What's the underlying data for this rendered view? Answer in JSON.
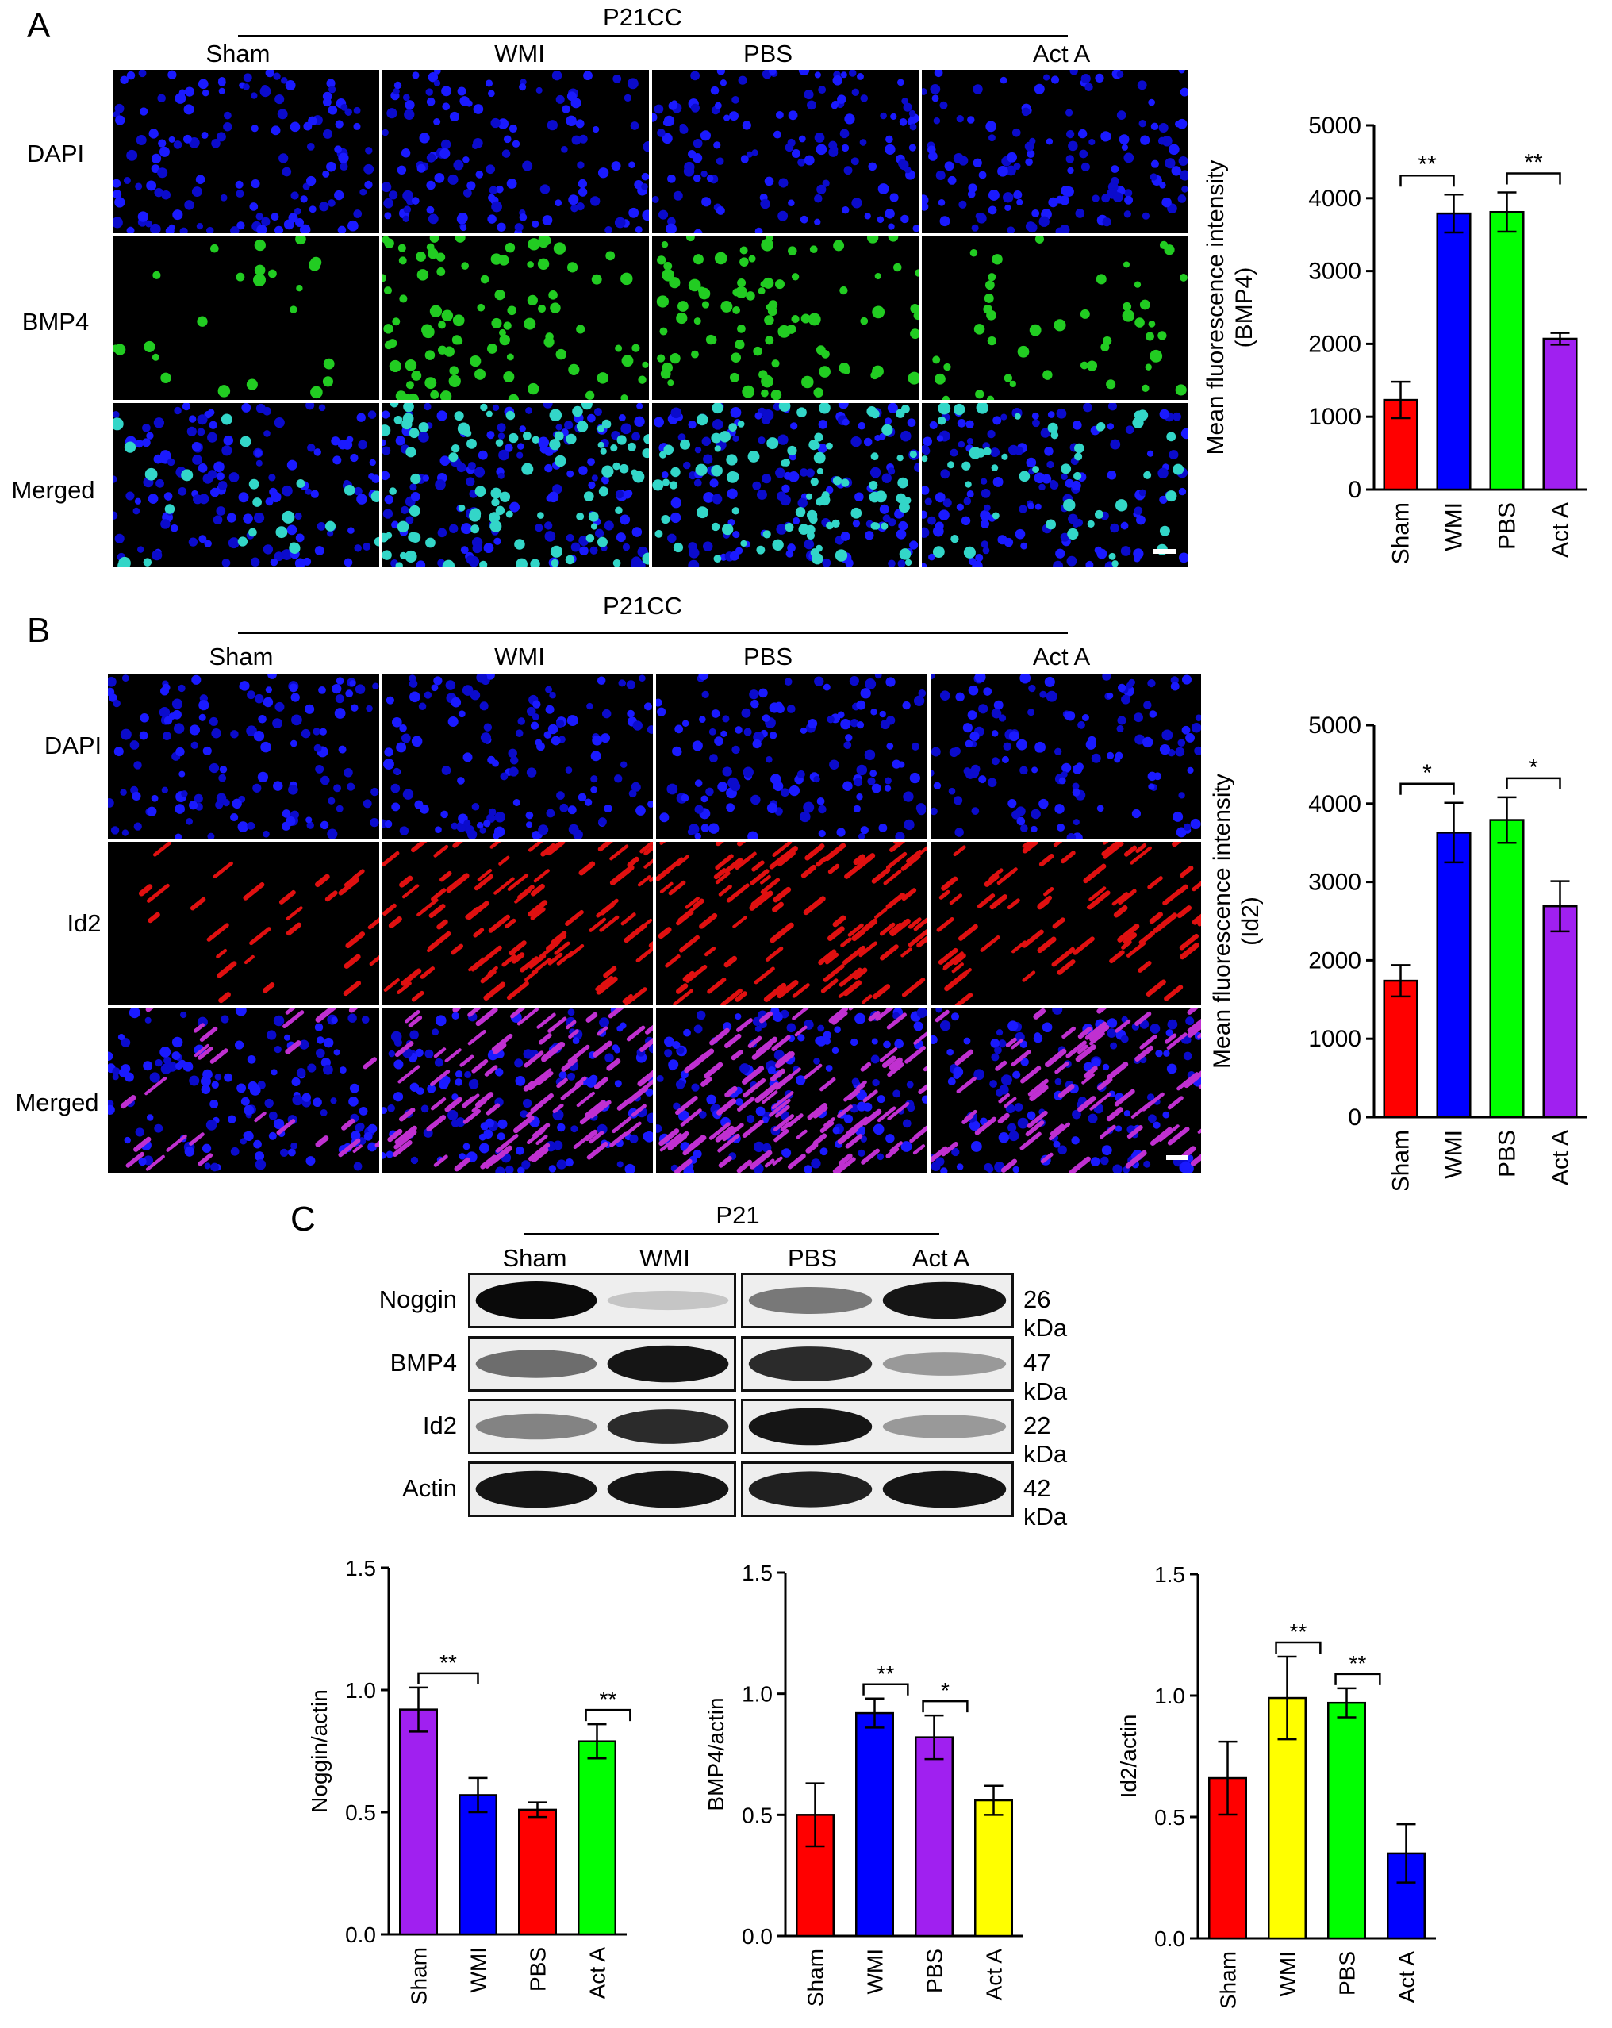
{
  "panel_a": {
    "letter": "A",
    "header": "P21CC",
    "columns": [
      "Sham",
      "WMI",
      "PBS",
      "Act A"
    ],
    "rows": [
      "DAPI",
      "BMP4",
      "Merged"
    ]
  },
  "panel_b": {
    "letter": "B",
    "header": "P21CC",
    "columns": [
      "Sham",
      "WMI",
      "PBS",
      "Act A"
    ],
    "rows": [
      "DAPI",
      "Id2",
      "Merged"
    ]
  },
  "panel_c": {
    "letter": "C",
    "header": "P21",
    "columns": [
      "Sham",
      "WMI",
      "PBS",
      "Act A"
    ],
    "blots": [
      {
        "label": "Noggin",
        "kda": "26 kDa",
        "bands": [
          1.0,
          0.15,
          0.5,
          0.95
        ]
      },
      {
        "label": "BMP4",
        "kda": "47 kDa",
        "bands": [
          0.55,
          0.95,
          0.85,
          0.35
        ]
      },
      {
        "label": "Id2",
        "kda": "22 kDa",
        "bands": [
          0.45,
          0.85,
          0.95,
          0.35
        ]
      },
      {
        "label": "Actin",
        "kda": "42 kDa",
        "bands": [
          0.95,
          0.95,
          0.9,
          0.95
        ]
      }
    ]
  },
  "colors": {
    "red": "#ff0000",
    "blue": "#0000ff",
    "green": "#00ff00",
    "purple": "#a020f0",
    "yellow": "#ffff00"
  },
  "chart_data": [
    {
      "id": "A-chart",
      "type": "bar",
      "categories": [
        "Sham",
        "WMI",
        "PBS",
        "Act A"
      ],
      "values": [
        1230,
        3790,
        3810,
        2070
      ],
      "errors": [
        250,
        260,
        270,
        80
      ],
      "colors": [
        "#ff0000",
        "#0000ff",
        "#00ff00",
        "#a020f0"
      ],
      "ylabel": [
        "Mean fluorescence intensity",
        "(BMP4)"
      ],
      "ylim": [
        0,
        5000
      ],
      "yticks": [
        "0",
        "1000",
        "2000",
        "3000",
        "4000",
        "5000"
      ],
      "yticks_v": [
        0,
        1000,
        2000,
        3000,
        4000,
        5000
      ],
      "sig": [
        {
          "from": 0,
          "to": 1,
          "label": "**"
        },
        {
          "from": 2,
          "to": 3,
          "label": "**"
        }
      ]
    },
    {
      "id": "B-chart",
      "type": "bar",
      "categories": [
        "Sham",
        "WMI",
        "PBS",
        "Act A"
      ],
      "values": [
        1740,
        3630,
        3790,
        2690
      ],
      "errors": [
        200,
        380,
        290,
        320
      ],
      "colors": [
        "#ff0000",
        "#0000ff",
        "#00ff00",
        "#a020f0"
      ],
      "ylabel": [
        "Mean fluorescence intensity",
        "(Id2)"
      ],
      "ylim": [
        0,
        5000
      ],
      "yticks": [
        "0",
        "1000",
        "2000",
        "3000",
        "4000",
        "5000"
      ],
      "yticks_v": [
        0,
        1000,
        2000,
        3000,
        4000,
        5000
      ],
      "sig": [
        {
          "from": 0,
          "to": 1,
          "label": "*"
        },
        {
          "from": 2,
          "to": 3,
          "label": "*"
        }
      ]
    },
    {
      "id": "C1-chart",
      "type": "bar",
      "categories": [
        "Sham",
        "WMI",
        "PBS",
        "Act A"
      ],
      "values": [
        0.92,
        0.57,
        0.51,
        0.79
      ],
      "errors": [
        0.09,
        0.07,
        0.03,
        0.07
      ],
      "colors": [
        "#a020f0",
        "#0000ff",
        "#ff0000",
        "#00ff00"
      ],
      "ylabel": [
        "Noggin/actin"
      ],
      "ylim": [
        0,
        1.5
      ],
      "yticks": [
        "0.0",
        "0.5",
        "1.0",
        "1.5"
      ],
      "yticks_v": [
        0,
        0.5,
        1.0,
        1.5
      ],
      "sig": [
        {
          "from": 0,
          "to": 1,
          "label": "**"
        },
        {
          "from": 3,
          "to": 3,
          "label": "**"
        }
      ]
    },
    {
      "id": "C2-chart",
      "type": "bar",
      "categories": [
        "Sham",
        "WMI",
        "PBS",
        "Act A"
      ],
      "values": [
        0.5,
        0.92,
        0.82,
        0.56
      ],
      "errors": [
        0.13,
        0.06,
        0.09,
        0.06
      ],
      "colors": [
        "#ff0000",
        "#0000ff",
        "#a020f0",
        "#ffff00"
      ],
      "ylabel": [
        "BMP4/actin"
      ],
      "ylim": [
        0,
        1.5
      ],
      "yticks": [
        "0.0",
        "0.5",
        "1.0",
        "1.5"
      ],
      "yticks_v": [
        0,
        0.5,
        1.0,
        1.5
      ],
      "sig": [
        {
          "from": 1,
          "to": 1,
          "label": "**"
        },
        {
          "from": 2,
          "to": 2,
          "label": "*"
        }
      ]
    },
    {
      "id": "C3-chart",
      "type": "bar",
      "categories": [
        "Sham",
        "WMI",
        "PBS",
        "Act A"
      ],
      "values": [
        0.66,
        0.99,
        0.97,
        0.35
      ],
      "errors": [
        0.15,
        0.17,
        0.06,
        0.12
      ],
      "colors": [
        "#ff0000",
        "#ffff00",
        "#00ff00",
        "#0000ff"
      ],
      "ylabel": [
        "Id2/actin"
      ],
      "ylim": [
        0,
        1.5
      ],
      "yticks": [
        "0.0",
        "0.5",
        "1.0",
        "1.5"
      ],
      "yticks_v": [
        0,
        0.5,
        1.0,
        1.5
      ],
      "sig": [
        {
          "from": 1,
          "to": 1,
          "label": "**"
        },
        {
          "from": 2,
          "to": 2,
          "label": "**"
        }
      ]
    }
  ]
}
